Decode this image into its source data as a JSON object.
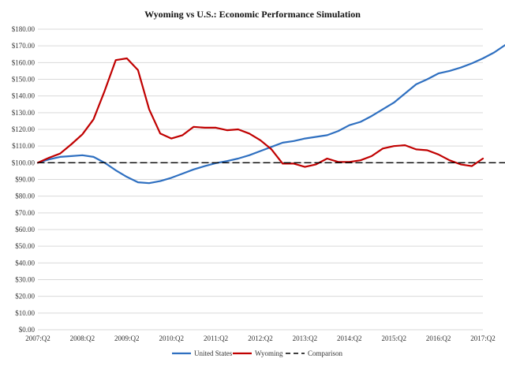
{
  "chart_data": {
    "type": "line",
    "title": "Wyoming vs U.S.: Economic Performance Simulation",
    "xlabel": "",
    "ylabel": "",
    "ylim": [
      0,
      180
    ],
    "yticks": [
      0,
      10,
      20,
      30,
      40,
      50,
      60,
      70,
      80,
      90,
      100,
      110,
      120,
      130,
      140,
      150,
      160,
      170,
      180
    ],
    "ytick_labels": [
      "$0.00",
      "$10.00",
      "$20.00",
      "$30.00",
      "$40.00",
      "$50.00",
      "$60.00",
      "$70.00",
      "$80.00",
      "$90.00",
      "$100.00",
      "$110.00",
      "$120.00",
      "$130.00",
      "$140.00",
      "$150.00",
      "$160.00",
      "$170.00",
      "$180.00"
    ],
    "xtick_labels": [
      "2007:Q2",
      "2008:Q2",
      "2009:Q2",
      "2010:Q2",
      "2011:Q2",
      "2012:Q2",
      "2013:Q2",
      "2014:Q2",
      "2015:Q2",
      "2016:Q2",
      "2017:Q2"
    ],
    "grid": "horizontal",
    "legend_position": "bottom",
    "series": [
      {
        "name": "United States",
        "color": "#2e6fc0",
        "style": "solid",
        "values": [
          100,
          102,
          103.5,
          104,
          104.5,
          103.5,
          100,
          95.5,
          91.5,
          88.3,
          87.8,
          89,
          91,
          93.5,
          96,
          98,
          99.8,
          101,
          102.5,
          104.5,
          107,
          109.5,
          112,
          113,
          114.5,
          115.5,
          116.5,
          119,
          122.5,
          124.5,
          128,
          132,
          136,
          141.5,
          147,
          150,
          153.5,
          155,
          157,
          159.5,
          162.5,
          166,
          170.5
        ]
      },
      {
        "name": "Wyoming",
        "color": "#c00000",
        "style": "solid",
        "values": [
          100,
          103,
          105.5,
          111,
          117,
          126,
          143,
          161.5,
          162.5,
          155.5,
          132,
          117.5,
          114.5,
          116.5,
          121.5,
          121,
          121,
          119.5,
          120,
          117.5,
          113.5,
          108,
          99.5,
          99.5,
          97.5,
          99,
          102.5,
          100.5,
          100.5,
          101.5,
          104,
          108.5,
          110,
          110.5,
          108,
          107.5,
          105,
          101.5,
          99,
          98,
          102.5
        ]
      },
      {
        "name": "Comparison",
        "color": "#000000",
        "style": "dashed",
        "values": [
          100,
          100,
          100,
          100,
          100,
          100,
          100,
          100,
          100,
          100,
          100,
          100,
          100,
          100,
          100,
          100,
          100,
          100,
          100,
          100,
          100,
          100,
          100,
          100,
          100,
          100,
          100,
          100,
          100,
          100,
          100,
          100,
          100,
          100,
          100,
          100,
          100,
          100,
          100,
          100,
          100,
          100,
          100
        ]
      }
    ]
  }
}
